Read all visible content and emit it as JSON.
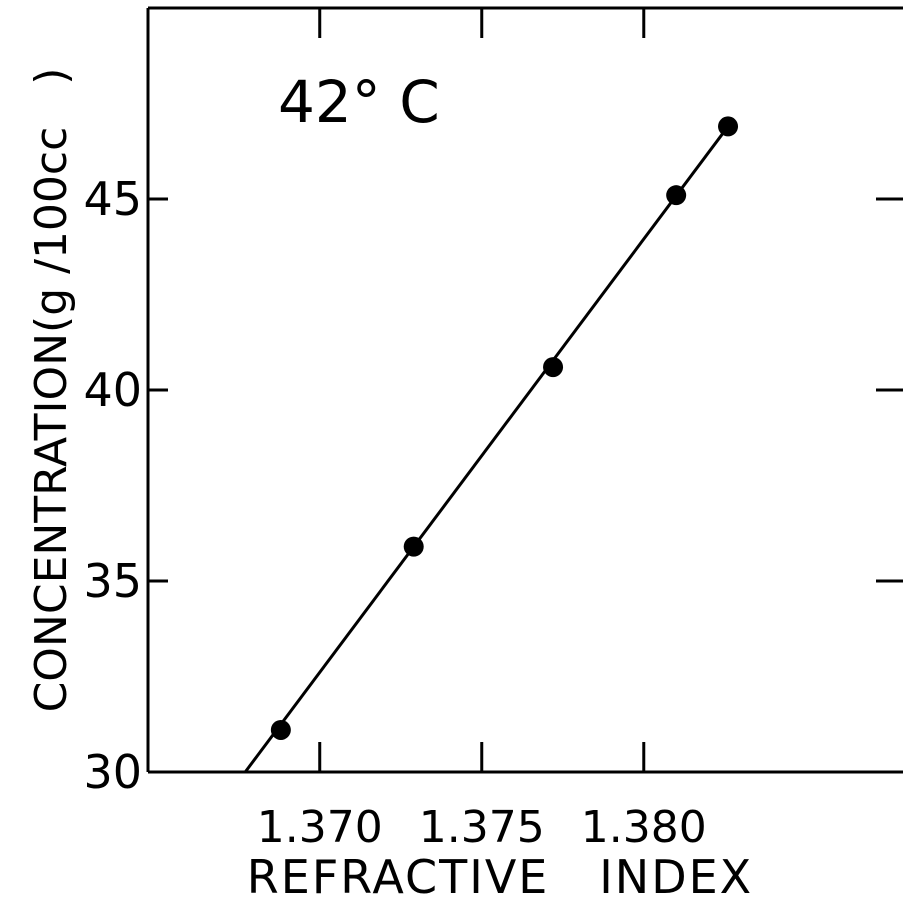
{
  "chart_data": {
    "type": "scatter",
    "annotation": "42° C",
    "xlabel": "REFRACTIVE   INDEX",
    "ylabel": "CONCENTRATION(g /100cc   )",
    "xlim": [
      1.3647,
      1.388
    ],
    "ylim": [
      30,
      50
    ],
    "xticks": [
      1.37,
      1.375,
      1.38
    ],
    "xtick_labels": [
      "1.370",
      "1.375",
      "1.380"
    ],
    "yticks": [
      30,
      35,
      40,
      45
    ],
    "ytick_labels": [
      "30",
      "35",
      "40",
      "45"
    ],
    "grid": false,
    "legend": "none",
    "series": [
      {
        "points": [
          {
            "x": 1.3688,
            "y": 31.1
          },
          {
            "x": 1.3729,
            "y": 35.9
          },
          {
            "x": 1.3772,
            "y": 40.6
          },
          {
            "x": 1.381,
            "y": 45.1
          },
          {
            "x": 1.3826,
            "y": 46.9
          }
        ],
        "fit_line": [
          {
            "x": 1.3677,
            "y": 30.0
          },
          {
            "x": 1.3826,
            "y": 46.9
          }
        ]
      }
    ]
  }
}
